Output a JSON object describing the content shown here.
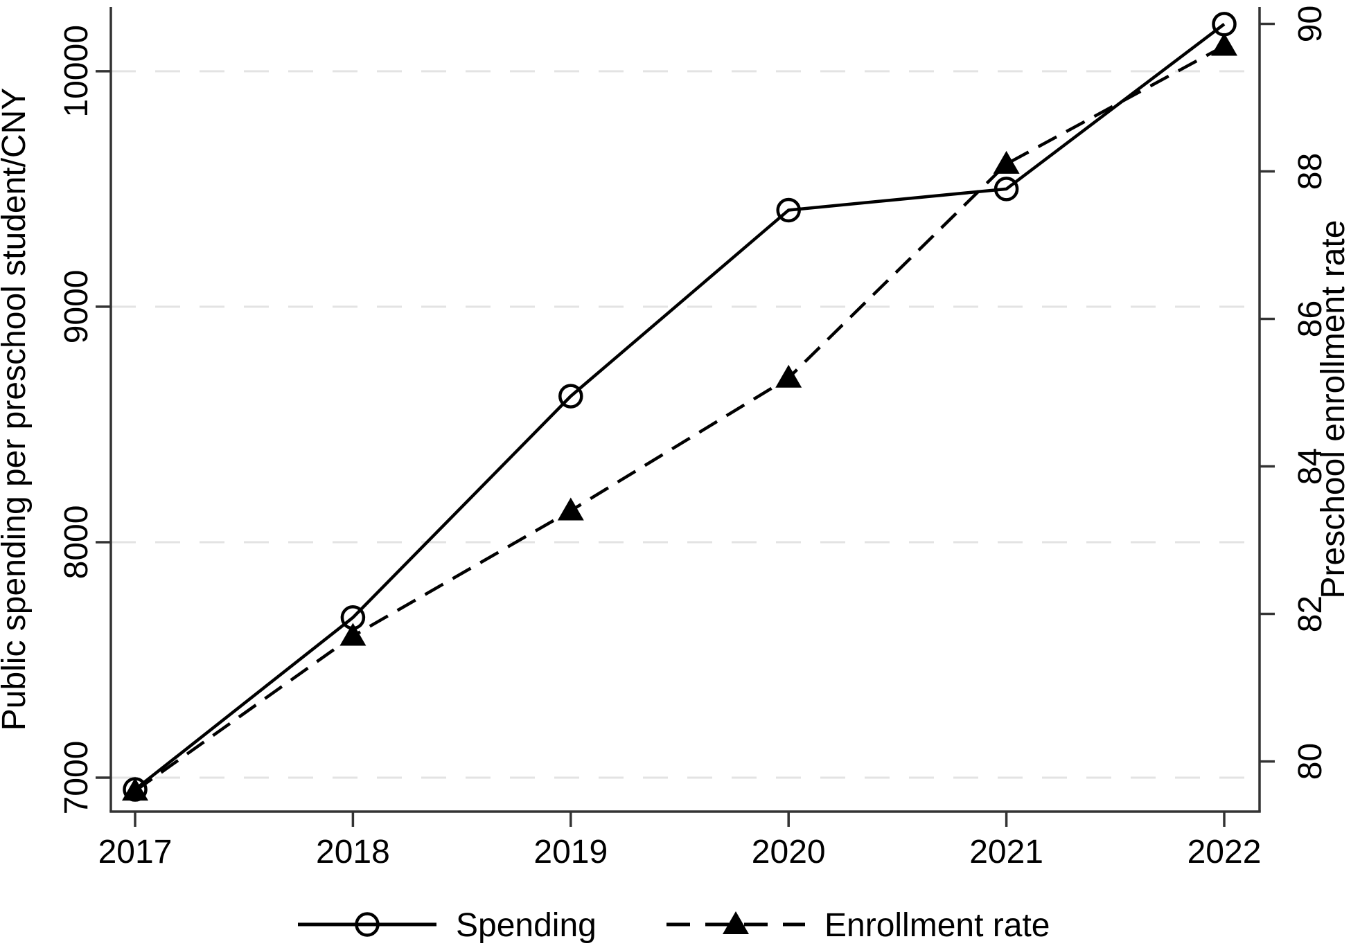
{
  "figure": {
    "background": "#ffffff"
  },
  "chart_data": {
    "type": "line",
    "title": "",
    "x": [
      2017,
      2018,
      2019,
      2020,
      2021,
      2022
    ],
    "series": [
      {
        "name": "Spending",
        "axis": "left",
        "line_style": "solid",
        "marker": "open-circle",
        "color": "#000000",
        "values": [
          6950,
          7680,
          8620,
          9410,
          9500,
          10200
        ]
      },
      {
        "name": "Enrollment rate",
        "axis": "right",
        "line_style": "dashed",
        "marker": "filled-triangle",
        "color": "#000000",
        "values": [
          79.6,
          81.7,
          83.4,
          85.2,
          88.1,
          89.7
        ]
      }
    ],
    "x_axis": {
      "ticks": [
        2017,
        2018,
        2019,
        2020,
        2021,
        2022
      ],
      "tick_labels": [
        "2017",
        "2018",
        "2019",
        "2020",
        "2021",
        "2022"
      ]
    },
    "left_axis": {
      "label": "Public spending per preschool student/CNY",
      "ticks": [
        7000,
        8000,
        9000,
        10000
      ],
      "range": [
        6856,
        10273
      ],
      "tick_label_rotation": -90
    },
    "right_axis": {
      "label": "Preschool enrollment rate",
      "ticks": [
        80,
        82,
        84,
        86,
        88,
        90
      ],
      "range": [
        79.32,
        90.23
      ],
      "tick_label_rotation": -90
    },
    "grid": {
      "show": true,
      "on_axis": "left",
      "style": "dashed"
    },
    "legend": {
      "position": "bottom-center",
      "items": [
        {
          "label": "Spending",
          "line_style": "solid",
          "marker": "open-circle"
        },
        {
          "label": "Enrollment rate",
          "line_style": "dashed",
          "marker": "filled-triangle"
        }
      ]
    },
    "colors": {
      "ink": "#000000",
      "axis": "#333333",
      "grid": "#e3e3e3",
      "background": "#ffffff"
    }
  }
}
